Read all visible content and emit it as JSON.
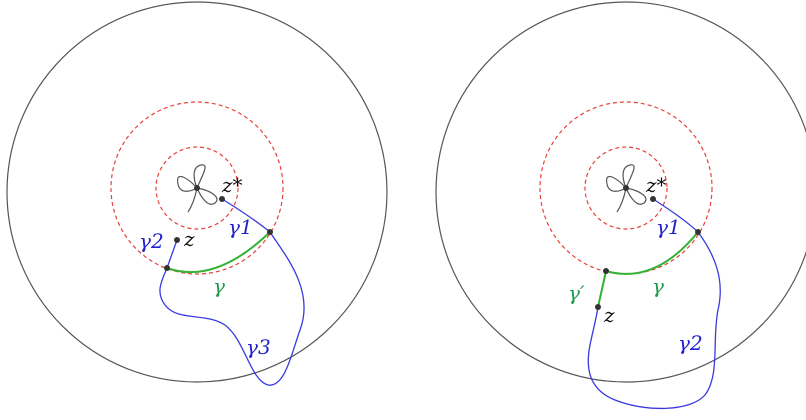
{
  "colors": {
    "outer_circle": "#555555",
    "dashed_circle": "#e8403a",
    "blue_path": "#3a3ae0",
    "green_arc": "#33b233",
    "point": "#333333",
    "star": "#555555",
    "label_black": "#111111",
    "label_blue": "#2222cc",
    "label_green": "#1f9a4a"
  },
  "left_panel": {
    "labels": {
      "z_star": "z*",
      "z": "z",
      "gamma1": "γ1",
      "gamma2": "γ2",
      "gamma3": "γ3",
      "gamma": "γ"
    }
  },
  "right_panel": {
    "labels": {
      "z_star": "z*",
      "z": "z",
      "gamma1": "γ1",
      "gamma2": "γ2",
      "gamma_prime": "γ′",
      "gamma": "γ"
    }
  }
}
